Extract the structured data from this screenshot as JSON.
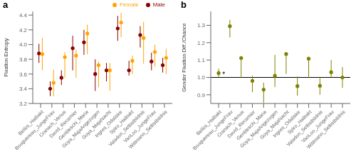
{
  "chart_data": [
    {
      "type": "scatter",
      "title": "a",
      "categories": [
        "Bellini_Halbakt",
        "Bouguereau_JungeFrau",
        "Cranach_Venus",
        "David_Recamier",
        "Gentileschi_Maria",
        "Goya_MajaAngezogen",
        "Goya_MajaNacht",
        "Ingres_Odaliske",
        "Spiro_Halbakt",
        "Valadon_Selbstbildnis",
        "VanLoo_JungeFrau",
        "Wittmann_Selbstbildnis"
      ],
      "y_label": "Fixation Entropy",
      "ylim": [
        3.2,
        4.45
      ],
      "yticks": [
        3.2,
        3.4,
        3.6,
        3.8,
        {
          "value": 4.0,
          "label": "4.0"
        },
        4.2,
        4.4
      ],
      "legend": "upper right",
      "series": [
        {
          "name": "Male",
          "color": "#8B0000",
          "values": [
            3.88,
            3.4,
            3.55,
            3.95,
            4.03,
            3.6,
            3.65,
            4.22,
            3.65,
            4.13,
            3.77,
            3.72
          ],
          "err_low": [
            0.13,
            0.1,
            0.1,
            0.3,
            0.17,
            0.23,
            0.15,
            0.17,
            0.07,
            0.17,
            0.12,
            0.1
          ],
          "err_high": [
            0.13,
            0.1,
            0.1,
            0.17,
            0.17,
            0.2,
            0.1,
            0.17,
            0.13,
            0.12,
            0.12,
            0.1
          ]
        },
        {
          "name": "Female",
          "color": "#FFA500",
          "values": [
            3.87,
            3.48,
            3.83,
            3.85,
            4.15,
            3.72,
            3.65,
            4.3,
            3.78,
            4.09,
            3.9,
            3.82
          ],
          "err_low": [
            0.22,
            0.18,
            0.28,
            0.3,
            0.28,
            0.3,
            0.28,
            0.2,
            0.18,
            0.35,
            0.2,
            0.22
          ],
          "err_high": [
            0.22,
            0.18,
            0.07,
            0.08,
            0.12,
            0.05,
            0.1,
            0.13,
            0.07,
            0.22,
            0.1,
            0.12
          ]
        }
      ]
    },
    {
      "type": "scatter",
      "title": "b",
      "categories": [
        "Bellini_Halbakt",
        "Bouguereau_JungeFrau",
        "Cranach_Venus",
        "David_Recamier",
        "Gentileschi_Maria",
        "Goya_MajaAngezogen",
        "Goya_MajaNacht",
        "Ingres_Odaliske",
        "Spiro_Halbakt",
        "Valadon_Selbstbildnis",
        "VanLoo_JungeFrau",
        "Wittmann_Selbstbildnis"
      ],
      "y_label": "Gender Fixation Diff./Chance",
      "ylim": [
        0.85,
        1.38
      ],
      "yticks": [
        0.9,
        {
          "value": 1.0,
          "label": "1.0"
        },
        1.1,
        1.2,
        1.3
      ],
      "reference_line": 1.0,
      "annotations": [
        {
          "text": "*",
          "x": 0.45,
          "y": 1.002
        }
      ],
      "series": [
        {
          "color": "#808000",
          "values": [
            1.025,
            1.295,
            1.112,
            0.98,
            0.93,
            1.01,
            1.135,
            0.95,
            1.108,
            0.952,
            1.03,
            1.0
          ],
          "err_low": [
            0.025,
            0.065,
            0.115,
            0.065,
            0.075,
            0.065,
            0.115,
            0.055,
            0.11,
            0.052,
            0.03,
            0.06
          ],
          "err_high": [
            0.025,
            0.037,
            0.01,
            0.03,
            0.04,
            0.12,
            0.01,
            0.055,
            0.005,
            0.052,
            0.07,
            0.06
          ]
        }
      ]
    }
  ]
}
